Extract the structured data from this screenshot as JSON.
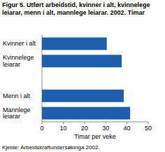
{
  "chart_data": {
    "type": "bar",
    "orientation": "horizontal",
    "title": "Figur 5. Utført arbeidstid, kvinner i alt, kvinnelege leiarar, menn i alt, mannlege leiarar. 2002. Timar",
    "categories": [
      "Kvinner i alt",
      "Kvinnelege leiarar",
      null,
      "Menn i alt",
      "Mannlege leiarar"
    ],
    "values": [
      30.5,
      37.5,
      null,
      38.5,
      41.5
    ],
    "color": "#1f5eaa",
    "xlabel": "Timar per veke",
    "xlim": [
      0,
      50
    ],
    "xticks": [
      0,
      10,
      20,
      30,
      40,
      50
    ],
    "grid": false,
    "source": "Kjelde: Arbeidskraftundersøkinga 2002."
  }
}
